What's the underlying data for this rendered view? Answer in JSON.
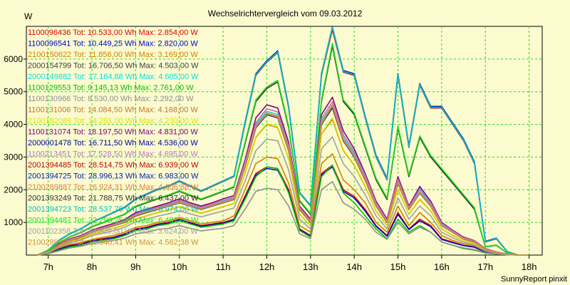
{
  "chart_data": {
    "type": "line",
    "title": "Wechselrichtervergleich vom 09.03.2012",
    "ylabel": "W",
    "footer": "SunnyReport pinxit",
    "x_ticks": [
      "7h",
      "8h",
      "9h",
      "10h",
      "11h",
      "12h",
      "13h",
      "14h",
      "15h",
      "16h",
      "17h",
      "18h"
    ],
    "y_ticks": [
      1000,
      2000,
      3000,
      4000,
      5000,
      6000
    ],
    "xlim": [
      6.5,
      18.3
    ],
    "ylim": [
      0,
      7000
    ],
    "grid": true,
    "legend_position": "top-left",
    "x": [
      6.75,
      7,
      7.25,
      7.5,
      7.75,
      8,
      8.25,
      8.5,
      8.75,
      9,
      9.25,
      9.5,
      9.75,
      10,
      10.25,
      10.5,
      10.75,
      11,
      11.25,
      11.5,
      11.75,
      12,
      12.25,
      12.5,
      12.75,
      13,
      13.25,
      13.5,
      13.75,
      14,
      14.25,
      14.5,
      14.75,
      15,
      15.25,
      15.5,
      15.75,
      16,
      16.25,
      16.5,
      16.75,
      17,
      17.25,
      17.5,
      17.75,
      18
    ],
    "series": [
      {
        "name": "1100096436 Tot: 10.533,00 Wh Max: 2.854,00 W",
        "color": "#e00000",
        "values": [
          0,
          60,
          200,
          300,
          350,
          450,
          500,
          550,
          650,
          800,
          850,
          950,
          1000,
          1100,
          1000,
          900,
          950,
          1000,
          1100,
          1800,
          2500,
          2700,
          2650,
          2000,
          800,
          600,
          2500,
          2750,
          2000,
          1800,
          1400,
          900,
          600,
          1300,
          800,
          1100,
          900,
          500,
          400,
          300,
          250,
          100,
          50,
          20,
          0,
          0
        ]
      },
      {
        "name": "1100096541 Tot: 10.449,25 Wh Max: 2.820,00 W",
        "color": "#0000d0",
        "values": [
          0,
          50,
          180,
          280,
          330,
          430,
          480,
          530,
          630,
          780,
          830,
          930,
          980,
          1080,
          980,
          880,
          930,
          980,
          1080,
          1750,
          2450,
          2650,
          2600,
          1950,
          780,
          580,
          2450,
          2700,
          1950,
          1750,
          1350,
          880,
          580,
          1250,
          780,
          1050,
          870,
          480,
          380,
          290,
          240,
          90,
          40,
          15,
          0,
          0
        ]
      },
      {
        "name": "2100150622 Tot: 11.856,00 Wh Max: 3.169,00 W",
        "color": "#d08000",
        "values": [
          0,
          70,
          220,
          330,
          380,
          480,
          540,
          600,
          700,
          850,
          900,
          1000,
          1050,
          1150,
          1050,
          950,
          1000,
          1050,
          1200,
          2000,
          2800,
          3000,
          2950,
          2200,
          900,
          700,
          2800,
          3100,
          2300,
          2000,
          1600,
          1000,
          700,
          1500,
          900,
          1300,
          1000,
          600,
          450,
          350,
          280,
          120,
          60,
          25,
          0,
          0
        ]
      },
      {
        "name": "2000154799 Tot: 16.706,50 Wh Max: 4.503,00 W",
        "color": "#404040",
        "values": [
          0,
          100,
          300,
          450,
          550,
          700,
          800,
          900,
          1000,
          1200,
          1300,
          1400,
          1500,
          1600,
          1500,
          1400,
          1500,
          1600,
          1700,
          2700,
          3900,
          4300,
          4200,
          3200,
          1400,
          1000,
          4000,
          4500,
          3500,
          3000,
          2300,
          1500,
          1000,
          2200,
          1400,
          1900,
          1500,
          900,
          700,
          500,
          400,
          180,
          80,
          30,
          0,
          0
        ]
      },
      {
        "name": "2000149882 Tot: 17.164,88 Wh Max: 4.605,00 W",
        "color": "#00e0e0",
        "values": [
          0,
          110,
          320,
          480,
          580,
          730,
          830,
          930,
          1050,
          1250,
          1350,
          1450,
          1550,
          1650,
          1550,
          1450,
          1550,
          1650,
          1750,
          2800,
          4000,
          4400,
          4300,
          3300,
          1450,
          1050,
          4100,
          4600,
          3600,
          3100,
          2400,
          1600,
          1050,
          2300,
          1450,
          2000,
          1550,
          950,
          720,
          520,
          420,
          190,
          90,
          35,
          0,
          0
        ]
      },
      {
        "name": "1100129553 Tot: 9.145,13 Wh Max: 2.761,00 W",
        "color": "#00c000",
        "values": [
          0,
          40,
          150,
          250,
          300,
          400,
          450,
          500,
          600,
          750,
          800,
          900,
          950,
          1050,
          950,
          850,
          900,
          950,
          1050,
          1700,
          2400,
          2700,
          2650,
          1900,
          750,
          550,
          2400,
          2750,
          1900,
          1600,
          1200,
          800,
          500,
          1100,
          700,
          900,
          700,
          400,
          300,
          200,
          150,
          60,
          30,
          10,
          0,
          0
        ]
      },
      {
        "name": "1100130966 Tot: 8.530,00 Wh Max: 2.292,00 W",
        "color": "#909090",
        "values": [
          0,
          40,
          130,
          220,
          270,
          350,
          400,
          450,
          520,
          650,
          700,
          780,
          820,
          900,
          820,
          740,
          780,
          820,
          900,
          1400,
          1950,
          2050,
          2000,
          1500,
          650,
          500,
          2000,
          2250,
          1600,
          1400,
          1100,
          700,
          480,
          1000,
          650,
          850,
          700,
          400,
          300,
          220,
          170,
          70,
          30,
          10,
          0,
          0
        ]
      },
      {
        "name": "1100131006 Tot: 14.084,50 Wh Max: 4.168,00 W",
        "color": "#c07830",
        "values": [
          0,
          90,
          280,
          420,
          500,
          640,
          730,
          820,
          920,
          1100,
          1200,
          1300,
          1380,
          1480,
          1380,
          1280,
          1380,
          1480,
          1580,
          2500,
          3600,
          4000,
          3900,
          2950,
          1250,
          900,
          3700,
          4150,
          3200,
          2750,
          2100,
          1350,
          900,
          2000,
          1250,
          1700,
          1350,
          800,
          600,
          450,
          350,
          160,
          70,
          25,
          0,
          0
        ]
      },
      {
        "name": "2100182089 Tot: 14.291,00 Wh Max: 4.230,00 W",
        "color": "#e0e000",
        "values": [
          0,
          90,
          285,
          430,
          510,
          650,
          740,
          830,
          930,
          1110,
          1210,
          1310,
          1390,
          1490,
          1390,
          1290,
          1390,
          1490,
          1590,
          2520,
          3620,
          4020,
          3920,
          2970,
          1260,
          910,
          3720,
          4200,
          3220,
          2770,
          2120,
          1360,
          910,
          2020,
          1260,
          1720,
          1360,
          810,
          610,
          455,
          355,
          162,
          72,
          26,
          0,
          0
        ]
      },
      {
        "name": "1100131074 Tot: 18.197,50 Wh Max: 4.831,00 W",
        "color": "#800080",
        "values": [
          0,
          120,
          340,
          500,
          600,
          760,
          870,
          970,
          1090,
          1300,
          1400,
          1500,
          1600,
          1720,
          1600,
          1500,
          1600,
          1720,
          1820,
          2900,
          4200,
          4600,
          4500,
          3450,
          1500,
          1100,
          4300,
          4830,
          3800,
          3250,
          2500,
          1650,
          1100,
          2400,
          1500,
          2100,
          1650,
          1000,
          760,
          550,
          440,
          200,
          95,
          35,
          0,
          0
        ]
      },
      {
        "name": "2000001478 Tot: 16.711,50 Wh Max: 4.536,00 W",
        "color": "#0000a0",
        "values": [
          0,
          100,
          300,
          450,
          550,
          700,
          800,
          900,
          1000,
          1200,
          1300,
          1400,
          1500,
          1600,
          1500,
          1400,
          1500,
          1600,
          1700,
          2700,
          3900,
          4300,
          4200,
          3200,
          1400,
          1000,
          4000,
          4530,
          3500,
          3000,
          2300,
          1500,
          1000,
          2200,
          1400,
          1900,
          1500,
          900,
          700,
          500,
          400,
          180,
          80,
          30,
          0,
          0
        ]
      },
      {
        "name": "1100213451 Tot: 17.528,50 Wh Max: 4.695,00 W",
        "color": "#c070c0",
        "values": [
          0,
          110,
          320,
          480,
          580,
          740,
          840,
          940,
          1060,
          1260,
          1360,
          1460,
          1560,
          1670,
          1560,
          1460,
          1560,
          1670,
          1770,
          2830,
          4050,
          4480,
          4380,
          3360,
          1460,
          1060,
          4180,
          4690,
          3680,
          3160,
          2440,
          1600,
          1060,
          2330,
          1460,
          2040,
          1600,
          970,
          740,
          530,
          430,
          195,
          90,
          35,
          0,
          0
        ]
      },
      {
        "name": "2001394485 Tot: 28.514,75 Wh Max: 6.939,00 W",
        "color": "#c00000",
        "values": [
          0,
          150,
          450,
          650,
          800,
          1000,
          1150,
          1300,
          1450,
          1700,
          1850,
          2000,
          2100,
          2250,
          2100,
          1950,
          2100,
          2250,
          2400,
          4000,
          5500,
          5900,
          6200,
          4500,
          1900,
          1500,
          5500,
          6900,
          5600,
          5500,
          4200,
          3000,
          2300,
          5500,
          3300,
          5200,
          4500,
          4500,
          4000,
          3500,
          2800,
          400,
          500,
          100,
          0,
          0
        ]
      },
      {
        "name": "2001394725 Tot: 28.996,13 Wh Max: 6.983,00 W",
        "color": "#0020c0",
        "values": [
          0,
          150,
          460,
          660,
          810,
          1010,
          1160,
          1310,
          1470,
          1720,
          1870,
          2020,
          2120,
          2270,
          2120,
          1970,
          2120,
          2270,
          2420,
          4050,
          5550,
          5950,
          6250,
          4550,
          1920,
          1520,
          5550,
          6980,
          5650,
          5550,
          4250,
          3050,
          2350,
          5550,
          3350,
          5250,
          4550,
          4550,
          4050,
          3550,
          2850,
          420,
          520,
          110,
          0,
          0
        ]
      },
      {
        "name": "2100289887 Tot: 16.924,31 Wh Max: 4.606,88 W",
        "color": "#e08040",
        "values": [
          0,
          100,
          310,
          460,
          560,
          710,
          810,
          910,
          1020,
          1220,
          1320,
          1420,
          1520,
          1620,
          1520,
          1420,
          1520,
          1620,
          1720,
          2740,
          3950,
          4350,
          4250,
          3250,
          1420,
          1020,
          4050,
          4600,
          3550,
          3050,
          2350,
          1530,
          1020,
          2240,
          1420,
          1930,
          1520,
          910,
          710,
          510,
          410,
          185,
          82,
          30,
          0,
          0
        ]
      },
      {
        "name": "2001393249 Tot: 21.788,75 Wh Max: 6.437,00 W",
        "color": "#303030",
        "values": [
          0,
          130,
          380,
          560,
          690,
          870,
          990,
          1120,
          1250,
          1480,
          1600,
          1720,
          1820,
          1950,
          1820,
          1700,
          1820,
          1950,
          2080,
          3400,
          4700,
          5100,
          5300,
          3900,
          1650,
          1250,
          4700,
          6400,
          4700,
          4300,
          3300,
          2300,
          1700,
          3900,
          2400,
          3600,
          3000,
          2600,
          2200,
          1800,
          1400,
          250,
          300,
          60,
          0,
          0
        ]
      },
      {
        "name": "2001394723 Tot: 28.537,75 Wh Max: 6.974,00 W",
        "color": "#00c0c0",
        "values": [
          0,
          148,
          455,
          655,
          805,
          1005,
          1155,
          1305,
          1460,
          1710,
          1860,
          2010,
          2110,
          2260,
          2110,
          1960,
          2110,
          2260,
          2410,
          4020,
          5520,
          5920,
          6220,
          4520,
          1910,
          1510,
          5520,
          6970,
          5620,
          5520,
          4220,
          3020,
          2320,
          5520,
          3320,
          5220,
          4520,
          4520,
          4020,
          3520,
          2820,
          410,
          510,
          105,
          0,
          0
        ]
      },
      {
        "name": "2001394487 Tot: 22.290,25 Wh Max: 6.481,00 W",
        "color": "#20e020",
        "values": [
          0,
          135,
          390,
          570,
          700,
          880,
          1000,
          1130,
          1260,
          1500,
          1620,
          1740,
          1840,
          1970,
          1840,
          1720,
          1840,
          1970,
          2100,
          3450,
          4750,
          5150,
          5350,
          3950,
          1680,
          1280,
          4750,
          6480,
          4750,
          4350,
          3350,
          2350,
          1750,
          3950,
          2450,
          3650,
          3050,
          2650,
          2250,
          1850,
          1450,
          260,
          310,
          65,
          0,
          0
        ]
      },
      {
        "name": "2001102358 Tot: 13.889,00 Wh Max: 3.624,00 W",
        "color": "#a0a0a0",
        "values": [
          0,
          80,
          250,
          380,
          460,
          590,
          670,
          750,
          850,
          1020,
          1100,
          1190,
          1260,
          1350,
          1260,
          1170,
          1260,
          1350,
          1440,
          2250,
          3200,
          3550,
          3500,
          2600,
          1100,
          800,
          3250,
          3620,
          2800,
          2400,
          1850,
          1200,
          800,
          1750,
          1100,
          1500,
          1200,
          700,
          530,
          400,
          310,
          140,
          60,
          20,
          0,
          0
        ]
      },
      {
        "name": "2100289900 Tot: 16.840,41 Wh Max: 4.562,38 W",
        "color": "#d09040",
        "values": [
          0,
          100,
          305,
          455,
          555,
          705,
          805,
          905,
          1010,
          1210,
          1310,
          1410,
          1510,
          1610,
          1510,
          1410,
          1510,
          1610,
          1710,
          2720,
          3920,
          4320,
          4220,
          3220,
          1410,
          1010,
          4020,
          4560,
          3520,
          3020,
          2320,
          1510,
          1010,
          2210,
          1410,
          1910,
          1510,
          905,
          705,
          505,
          405,
          182,
          81,
          30,
          0,
          0
        ]
      }
    ]
  }
}
